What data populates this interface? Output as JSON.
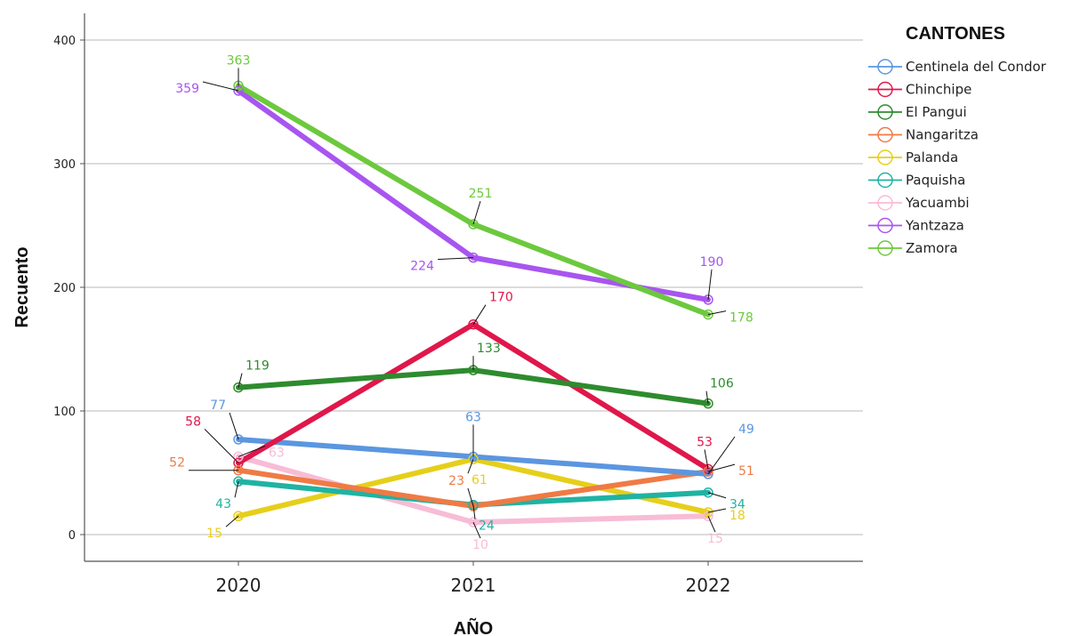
{
  "chart_data": {
    "type": "line",
    "xlabel": "AÑO",
    "ylabel": "Recuento",
    "categories": [
      "2020",
      "2021",
      "2022"
    ],
    "ylim": [
      0,
      400
    ],
    "yticks": [
      0,
      100,
      200,
      300,
      400
    ],
    "grid": "horizontal",
    "legend": {
      "title": "CANTONES",
      "placement": "right"
    },
    "series": [
      {
        "name": "Centinela del Condor",
        "color": "#5b96e0",
        "values": [
          77,
          63,
          49
        ]
      },
      {
        "name": "Chinchipe",
        "color": "#e0174a",
        "values": [
          58,
          170,
          53
        ]
      },
      {
        "name": "El Pangui",
        "color": "#2e8b2e",
        "values": [
          119,
          133,
          106
        ]
      },
      {
        "name": "Nangaritza",
        "color": "#f07a45",
        "values": [
          52,
          23,
          51
        ]
      },
      {
        "name": "Palanda",
        "color": "#e6cf1a",
        "values": [
          15,
          61,
          18
        ]
      },
      {
        "name": "Paquisha",
        "color": "#1fb3a3",
        "values": [
          43,
          24,
          34
        ]
      },
      {
        "name": "Yacuambi",
        "color": "#f8bcd6",
        "values": [
          63,
          10,
          15
        ]
      },
      {
        "name": "Yantzaza",
        "color": "#a855f0",
        "values": [
          359,
          224,
          190
        ]
      },
      {
        "name": "Zamora",
        "color": "#6cc93d",
        "values": [
          363,
          251,
          178
        ]
      }
    ]
  }
}
